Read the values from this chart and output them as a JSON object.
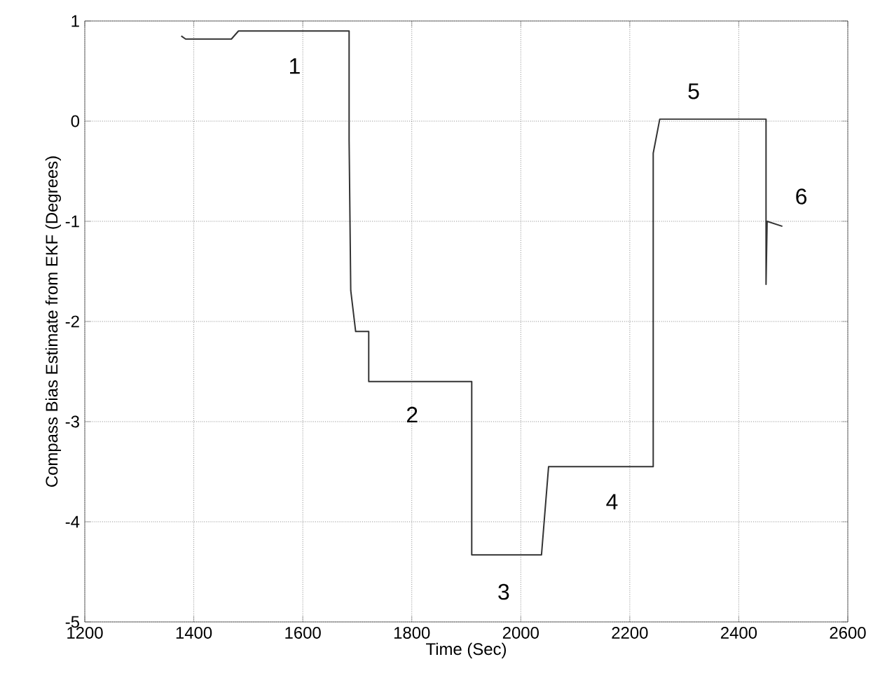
{
  "chart_data": {
    "type": "line",
    "xlabel": "Time (Sec)",
    "ylabel": "Compass Bias Estimate from EKF (Degrees)",
    "x": [
      1377,
      1385,
      1404,
      1469,
      1482,
      1685,
      1685,
      1688,
      1697,
      1721,
      1721,
      1910,
      1910,
      2038,
      2051,
      2243,
      2243,
      2255,
      2450,
      2450,
      2452,
      2480
    ],
    "values": [
      0.85,
      0.82,
      0.82,
      0.82,
      0.9,
      0.9,
      -0.19,
      -1.69,
      -2.1,
      -2.1,
      -2.6,
      -2.6,
      -4.33,
      -4.33,
      -3.45,
      -3.45,
      -0.32,
      0.02,
      0.02,
      -1.63,
      -1.0,
      -1.05
    ],
    "color": "#333333",
    "xlim": [
      1200,
      2600
    ],
    "ylim": [
      -5,
      1
    ],
    "xticks": [
      1200,
      1400,
      1600,
      1800,
      2000,
      2200,
      2400,
      2600
    ],
    "yticks": [
      -5,
      -4,
      -3,
      -2,
      -1,
      0,
      1
    ],
    "grid": true,
    "annotations": [
      "1",
      "2",
      "3",
      "4",
      "5",
      "6"
    ]
  }
}
